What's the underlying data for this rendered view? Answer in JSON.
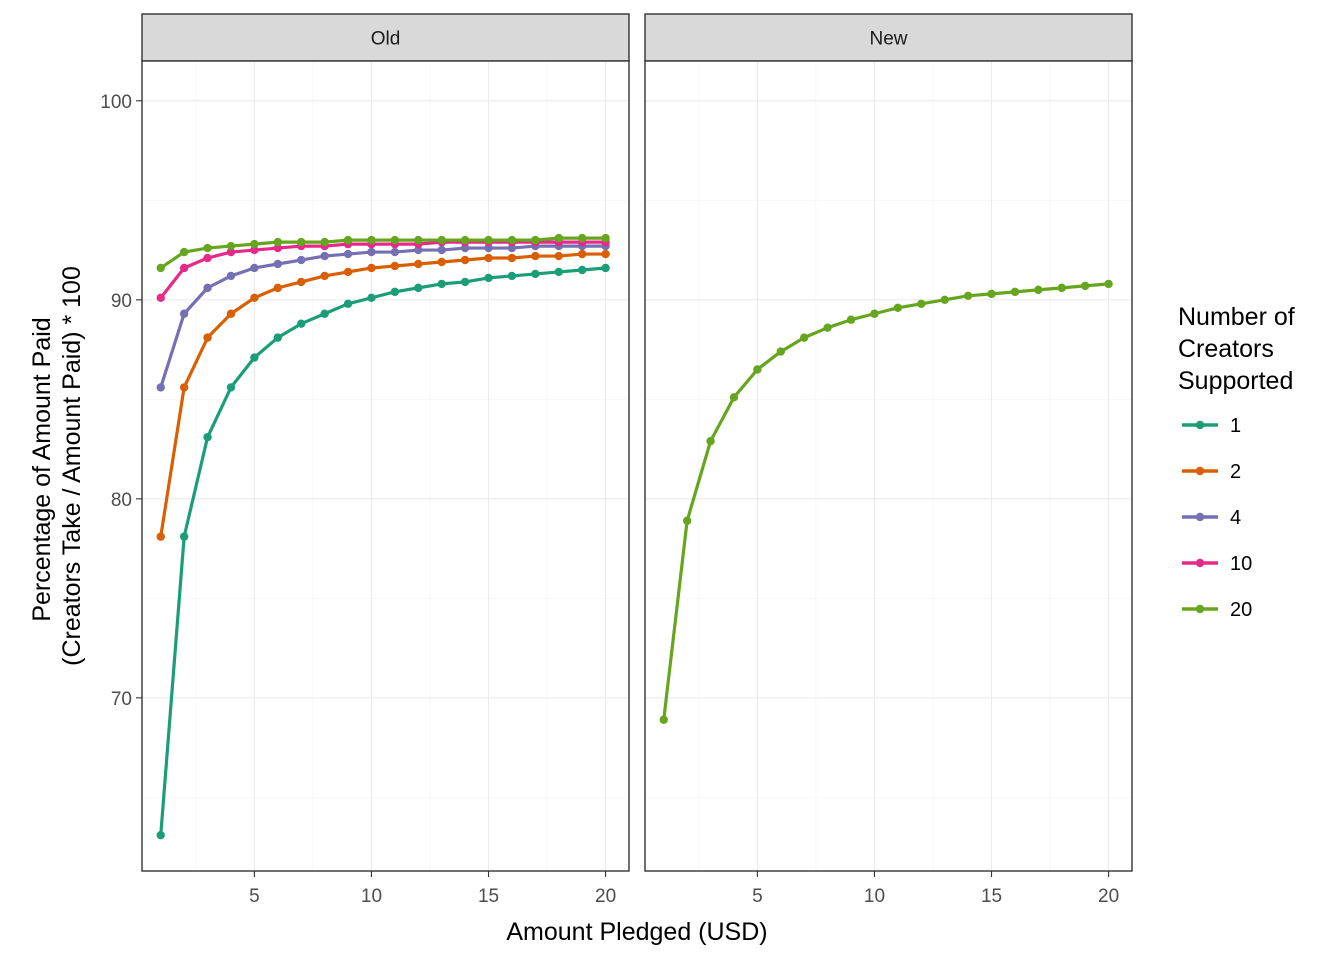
{
  "chart_data": {
    "type": "line",
    "facets": [
      "Old",
      "New"
    ],
    "xlabel": "Amount Pledged (USD)",
    "ylabel_lines": [
      "Percentage of Amount Paid",
      "(Creators Take / Amount Paid) * 100"
    ],
    "xlim": [
      0.2,
      21.0
    ],
    "ylim": [
      61.3,
      102.0
    ],
    "x_ticks": [
      5,
      10,
      15,
      20
    ],
    "y_ticks": [
      70,
      80,
      90,
      100
    ],
    "x": [
      1,
      2,
      3,
      4,
      5,
      6,
      7,
      8,
      9,
      10,
      11,
      12,
      13,
      14,
      15,
      16,
      17,
      18,
      19,
      20
    ],
    "legend": {
      "title_lines": [
        "Number of",
        "Creators",
        "Supported"
      ],
      "position": "right",
      "entries": [
        {
          "label": "1",
          "color": "#1b9e77"
        },
        {
          "label": "2",
          "color": "#d95f02"
        },
        {
          "label": "4",
          "color": "#7570b3"
        },
        {
          "label": "10",
          "color": "#e7298a"
        },
        {
          "label": "20",
          "color": "#66a61e"
        }
      ]
    },
    "panels": [
      {
        "facet": "Old",
        "series": [
          {
            "name": "1",
            "color": "#1b9e77",
            "values": [
              63.1,
              78.1,
              83.1,
              85.6,
              87.1,
              88.1,
              88.8,
              89.3,
              89.8,
              90.1,
              90.4,
              90.6,
              90.8,
              90.9,
              91.1,
              91.2,
              91.3,
              91.4,
              91.5,
              91.6
            ]
          },
          {
            "name": "2",
            "color": "#d95f02",
            "values": [
              78.1,
              85.6,
              88.1,
              89.3,
              90.1,
              90.6,
              90.9,
              91.2,
              91.4,
              91.6,
              91.7,
              91.8,
              91.9,
              92.0,
              92.1,
              92.1,
              92.2,
              92.2,
              92.3,
              92.3
            ]
          },
          {
            "name": "4",
            "color": "#7570b3",
            "values": [
              85.6,
              89.3,
              90.6,
              91.2,
              91.6,
              91.8,
              92.0,
              92.2,
              92.3,
              92.4,
              92.4,
              92.5,
              92.5,
              92.6,
              92.6,
              92.6,
              92.7,
              92.7,
              92.7,
              92.7
            ]
          },
          {
            "name": "10",
            "color": "#e7298a",
            "values": [
              90.1,
              91.6,
              92.1,
              92.4,
              92.5,
              92.6,
              92.7,
              92.7,
              92.8,
              92.8,
              92.8,
              92.8,
              92.9,
              92.9,
              92.9,
              92.9,
              92.9,
              92.9,
              92.9,
              92.9
            ]
          },
          {
            "name": "20",
            "color": "#66a61e",
            "values": [
              91.6,
              92.4,
              92.6,
              92.7,
              92.8,
              92.9,
              92.9,
              92.9,
              93.0,
              93.0,
              93.0,
              93.0,
              93.0,
              93.0,
              93.0,
              93.0,
              93.0,
              93.1,
              93.1,
              93.1
            ]
          }
        ]
      },
      {
        "facet": "New",
        "series": [
          {
            "name": "20",
            "color": "#66a61e",
            "values": [
              68.9,
              78.9,
              82.9,
              85.1,
              86.5,
              87.4,
              88.1,
              88.6,
              89.0,
              89.3,
              89.6,
              89.8,
              90.0,
              90.2,
              90.3,
              90.4,
              90.5,
              90.6,
              90.7,
              90.8
            ]
          }
        ]
      }
    ]
  }
}
